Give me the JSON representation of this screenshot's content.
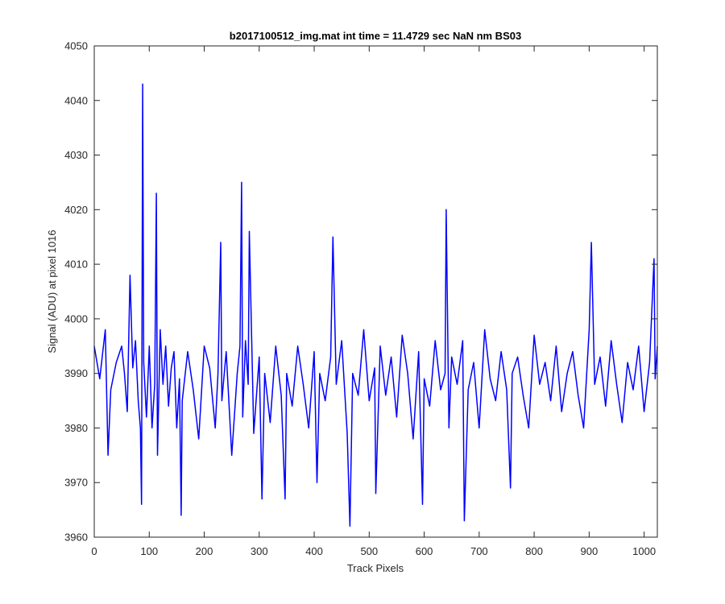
{
  "chart_data": {
    "type": "line",
    "title": "b2017100512_img.mat int time = 11.4729 sec  NaN nm BS03",
    "xlabel": "Track Pixels",
    "ylabel": "Signal (ADU) at pixel 1016",
    "xlim": [
      0,
      1024
    ],
    "ylim": [
      3960,
      4050
    ],
    "xticks": [
      0,
      100,
      200,
      300,
      400,
      500,
      600,
      700,
      800,
      900,
      1000
    ],
    "yticks": [
      3960,
      3970,
      3980,
      3990,
      4000,
      4010,
      4020,
      4030,
      4040,
      4050
    ],
    "grid": false,
    "legend": "none",
    "series_color": "#0000ff",
    "series": [
      {
        "x": [
          0,
          10,
          20,
          25,
          30,
          40,
          50,
          55,
          60,
          65,
          70,
          75,
          80,
          84,
          86,
          88,
          90,
          95,
          100,
          105,
          110,
          113,
          115,
          120,
          125,
          130,
          135,
          140,
          145,
          150,
          155,
          158,
          160,
          170,
          180,
          190,
          200,
          210,
          220,
          225,
          230,
          232,
          240,
          250,
          260,
          265,
          268,
          270,
          275,
          280,
          282,
          290,
          300,
          305,
          310,
          320,
          330,
          340,
          347,
          350,
          360,
          370,
          380,
          390,
          400,
          405,
          410,
          420,
          430,
          434,
          440,
          450,
          460,
          465,
          470,
          480,
          490,
          500,
          510,
          512,
          520,
          530,
          540,
          550,
          560,
          570,
          580,
          590,
          597,
          600,
          610,
          620,
          630,
          638,
          640,
          645,
          650,
          660,
          670,
          673,
          680,
          690,
          700,
          710,
          720,
          730,
          740,
          750,
          757,
          760,
          770,
          780,
          790,
          800,
          810,
          820,
          830,
          840,
          850,
          860,
          870,
          880,
          890,
          900,
          904,
          910,
          920,
          930,
          940,
          950,
          960,
          970,
          980,
          990,
          1000,
          1010,
          1018,
          1020,
          1024
        ],
        "y": [
          3995,
          3989,
          3998,
          3975,
          3987,
          3992,
          3995,
          3990,
          3983,
          4008,
          3991,
          3996,
          3985,
          3980,
          3966,
          4043,
          3992,
          3982,
          3995,
          3980,
          3988,
          4023,
          3975,
          3998,
          3988,
          3995,
          3984,
          3991,
          3994,
          3980,
          3989,
          3964,
          3985,
          3994,
          3987,
          3978,
          3995,
          3991,
          3980,
          3990,
          4014,
          3985,
          3994,
          3975,
          3990,
          3995,
          4025,
          3982,
          3996,
          3988,
          4016,
          3979,
          3993,
          3967,
          3990,
          3981,
          3995,
          3986,
          3967,
          3990,
          3984,
          3995,
          3988,
          3980,
          3994,
          3970,
          3990,
          3985,
          3993,
          4015,
          3988,
          3996,
          3979,
          3962,
          3990,
          3986,
          3998,
          3985,
          3991,
          3968,
          3995,
          3986,
          3993,
          3982,
          3997,
          3990,
          3978,
          3994,
          3966,
          3989,
          3984,
          3996,
          3987,
          3990,
          4020,
          3980,
          3993,
          3988,
          3996,
          3963,
          3987,
          3992,
          3980,
          3998,
          3989,
          3985,
          3994,
          3987,
          3969,
          3990,
          3993,
          3986,
          3980,
          3997,
          3988,
          3992,
          3985,
          3995,
          3983,
          3990,
          3994,
          3986,
          3980,
          3998,
          4014,
          3988,
          3993,
          3984,
          3996,
          3988,
          3981,
          3992,
          3987,
          3995,
          3983,
          3992,
          4011,
          3989,
          3995
        ]
      }
    ]
  }
}
